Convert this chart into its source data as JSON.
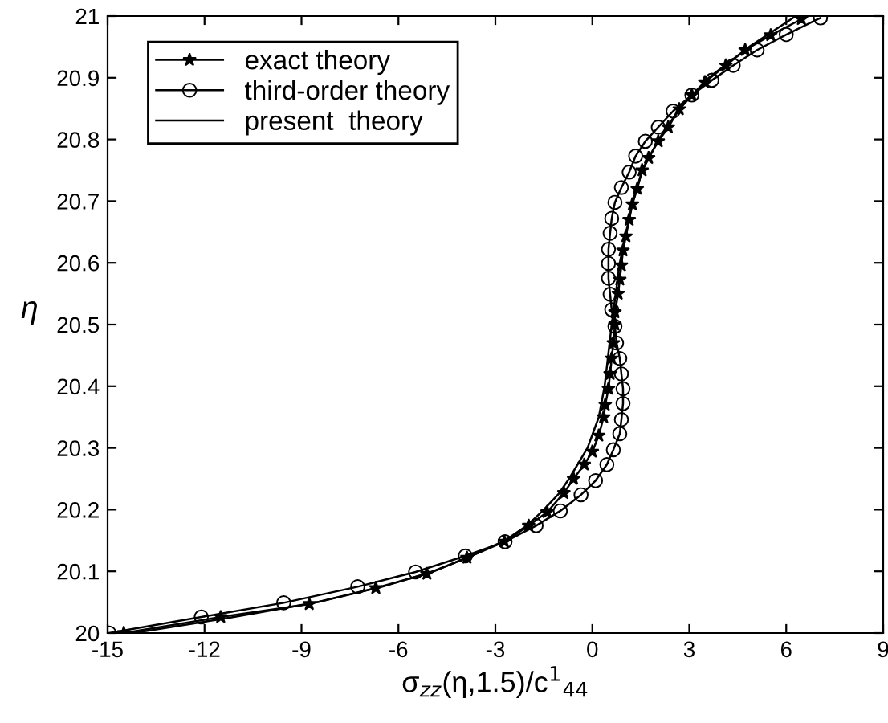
{
  "chart_data": {
    "type": "line",
    "xlabel": "σ$_{zz}$(η,1.5)/c$^{1}$$_{44}$",
    "ylabel": "η",
    "xlim": [
      -15,
      9
    ],
    "xticks": [
      -15,
      -12,
      -9,
      -6,
      -3,
      0,
      3,
      6,
      9
    ],
    "ylim": [
      20,
      21
    ],
    "yticks": [
      20,
      20.1,
      20.2,
      20.3,
      20.4,
      20.5,
      20.6,
      20.7,
      20.8,
      20.9,
      21
    ],
    "grid": false,
    "legend": "top left",
    "series": [
      {
        "name": "exact theory",
        "color": "#000000",
        "marker": "star",
        "line_style": "solid",
        "x": [
          -14.5,
          -11.5,
          -8.76,
          -6.7,
          -5.12,
          -3.88,
          -2.72,
          -1.97,
          -1.4,
          -0.88,
          -0.58,
          -0.25,
          0.0,
          0.2,
          0.35,
          0.4,
          0.5,
          0.55,
          0.6,
          0.65,
          0.7,
          0.7,
          0.8,
          0.85,
          0.9,
          0.95,
          1.04,
          1.14,
          1.24,
          1.39,
          1.54,
          1.74,
          2.04,
          2.35,
          2.69,
          3.08,
          3.48,
          4.13,
          4.73,
          5.52,
          6.47
        ],
        "values": [
          20.0,
          20.026,
          20.047,
          20.073,
          20.096,
          20.122,
          20.148,
          20.174,
          20.196,
          20.227,
          20.25,
          20.273,
          20.294,
          20.32,
          20.35,
          20.37,
          20.396,
          20.42,
          20.445,
          20.47,
          20.5,
          20.52,
          20.55,
          20.573,
          20.596,
          20.62,
          20.643,
          20.67,
          20.695,
          20.72,
          20.75,
          20.77,
          20.797,
          20.82,
          20.849,
          20.872,
          20.893,
          20.92,
          20.945,
          20.969,
          20.995
        ]
      },
      {
        "name": "third-order theory",
        "color": "#000000",
        "marker": "circle",
        "line_style": "solid",
        "x": [
          -14.95,
          -12.1,
          -9.55,
          -7.26,
          -5.47,
          -3.93,
          -2.7,
          -1.74,
          -0.99,
          -0.35,
          0.1,
          0.45,
          0.65,
          0.85,
          0.9,
          0.95,
          0.95,
          0.9,
          0.85,
          0.75,
          0.7,
          0.6,
          0.55,
          0.5,
          0.5,
          0.5,
          0.55,
          0.6,
          0.7,
          0.9,
          1.14,
          1.34,
          1.64,
          2.04,
          2.5,
          3.08,
          3.7,
          4.36,
          5.1,
          6.0,
          7.06
        ],
        "values": [
          20.0,
          20.026,
          20.049,
          20.075,
          20.099,
          20.125,
          20.148,
          20.174,
          20.198,
          20.224,
          20.247,
          20.273,
          20.297,
          20.323,
          20.346,
          20.372,
          20.396,
          20.42,
          20.445,
          20.47,
          20.497,
          20.524,
          20.549,
          20.575,
          20.599,
          20.622,
          20.648,
          20.672,
          20.698,
          20.722,
          20.747,
          20.773,
          20.797,
          20.82,
          20.846,
          20.872,
          20.896,
          20.92,
          20.945,
          20.97,
          20.997
        ]
      },
      {
        "name": "present  theory",
        "color": "#000000",
        "marker": "none",
        "line_style": "solid",
        "x": [
          -14.2,
          -11.2,
          -8.5,
          -6.5,
          -4.9,
          -3.75,
          -2.7,
          -2.0,
          -1.5,
          -1.05,
          -0.72,
          -0.15,
          0.2,
          0.38,
          0.6,
          0.85,
          1.25,
          1.55,
          2.05,
          2.7,
          3.6,
          4.85,
          6.3
        ],
        "values": [
          20.0,
          20.025,
          20.05,
          20.075,
          20.1,
          20.125,
          20.15,
          20.175,
          20.2,
          20.225,
          20.25,
          20.3,
          20.35,
          20.4,
          20.5,
          20.6,
          20.7,
          20.75,
          20.8,
          20.85,
          20.9,
          20.95,
          21.0
        ]
      }
    ]
  }
}
